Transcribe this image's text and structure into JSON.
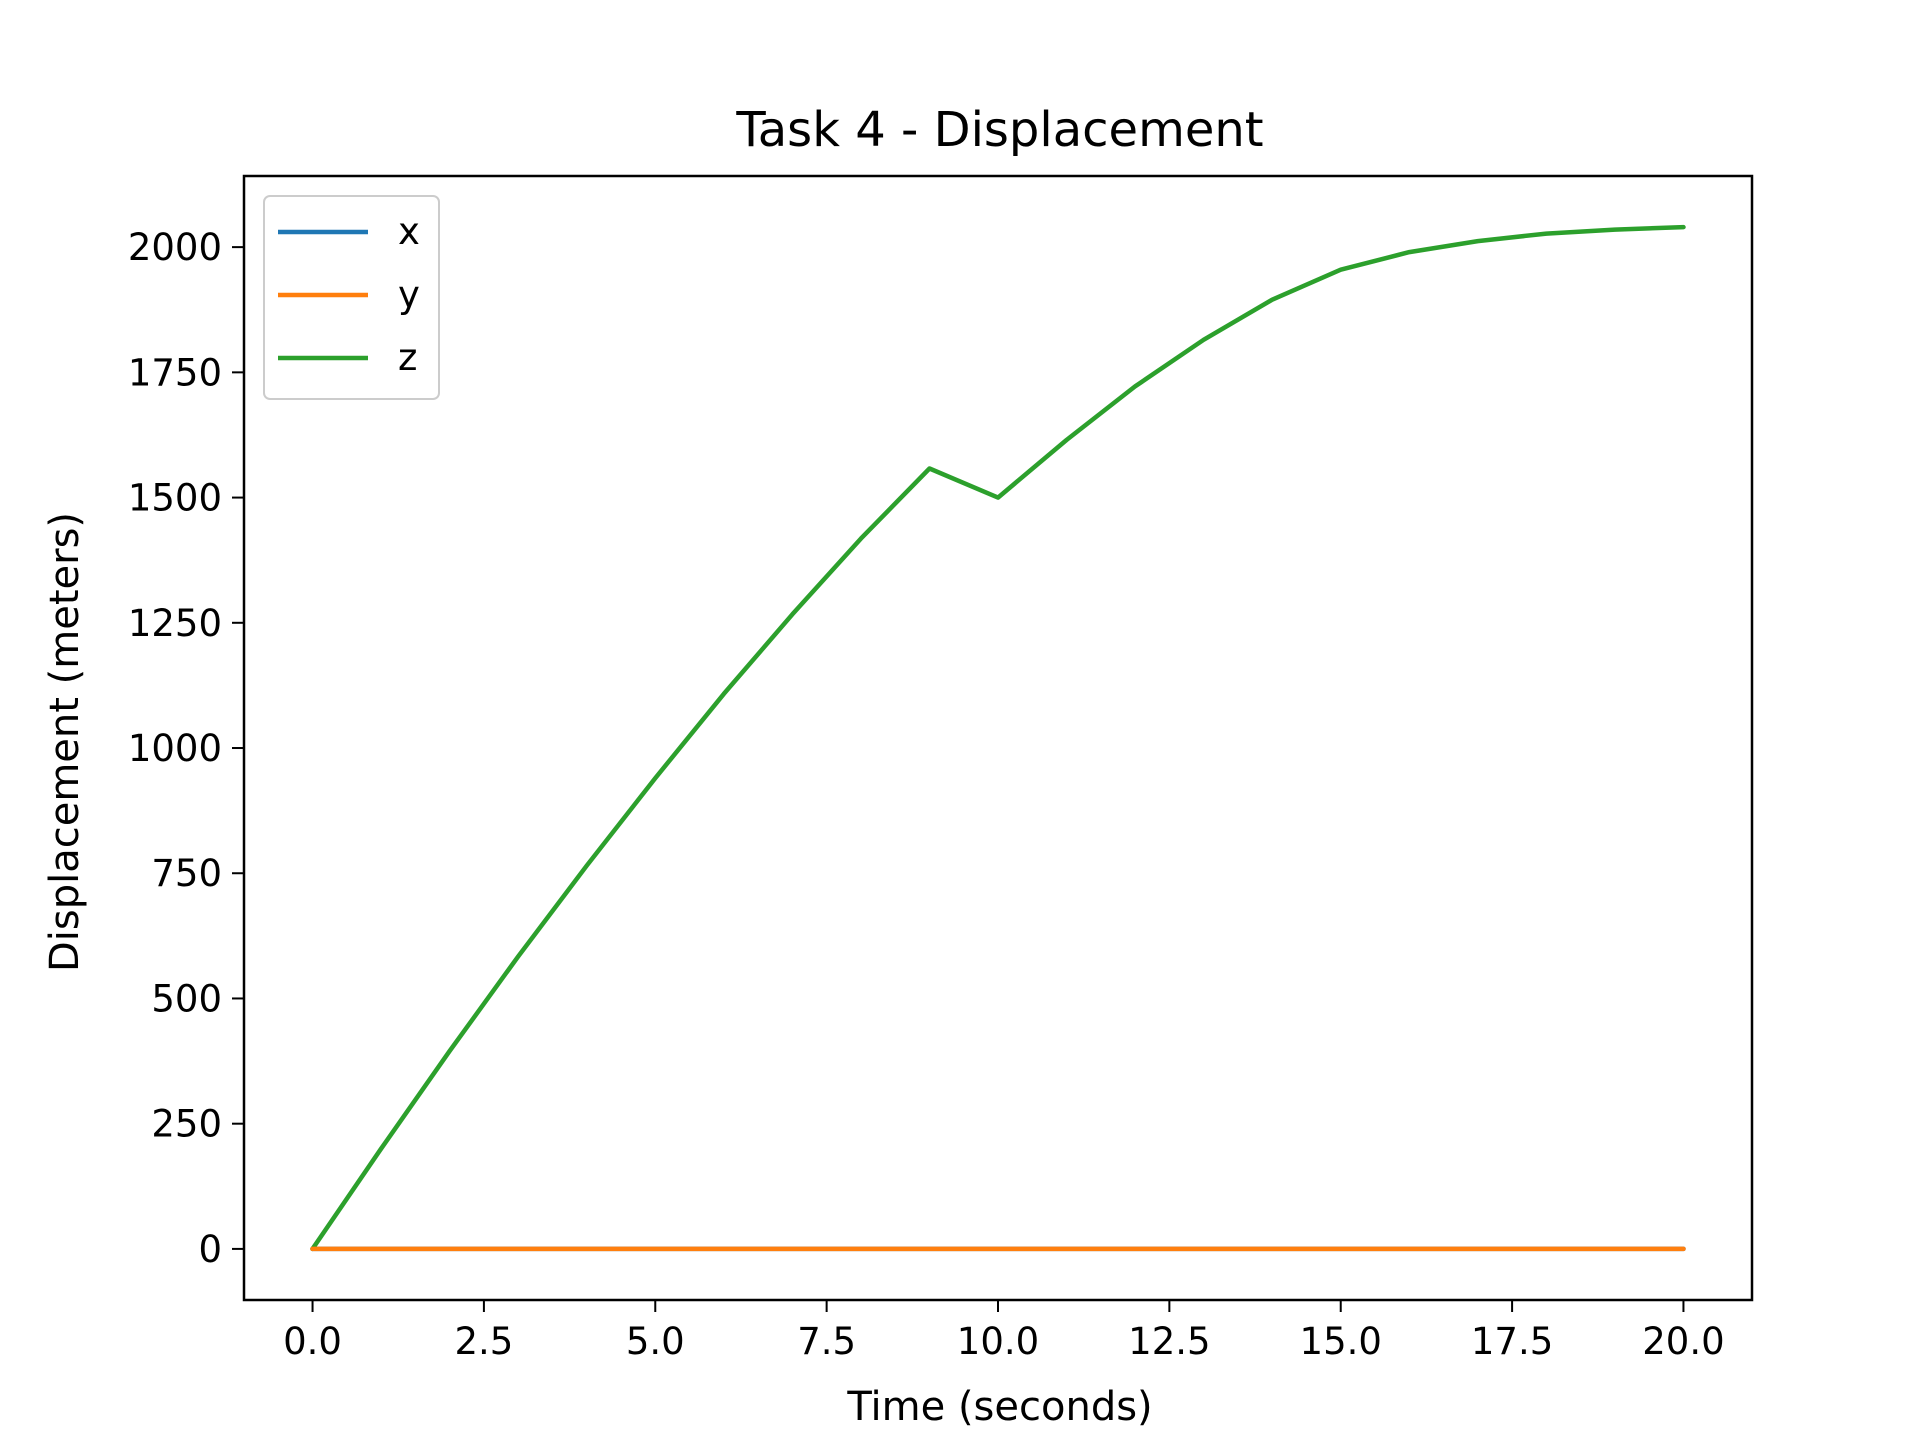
{
  "chart_data": {
    "type": "line",
    "title": "Task 4 - Displacement",
    "xlabel": "Time (seconds)",
    "ylabel": "Displacement (meters)",
    "xlim": [
      -1.0,
      21.0
    ],
    "ylim": [
      -102,
      2142
    ],
    "xticks": [
      0.0,
      2.5,
      5.0,
      7.5,
      10.0,
      12.5,
      15.0,
      17.5,
      20.0
    ],
    "xtick_labels": [
      "0.0",
      "2.5",
      "5.0",
      "7.5",
      "10.0",
      "12.5",
      "15.0",
      "17.5",
      "20.0"
    ],
    "yticks": [
      0,
      250,
      500,
      750,
      1000,
      1250,
      1500,
      1750,
      2000
    ],
    "ytick_labels": [
      "0",
      "250",
      "500",
      "750",
      "1000",
      "1250",
      "1500",
      "1750",
      "2000"
    ],
    "grid": false,
    "legend_position": "upper-left",
    "x": [
      0,
      1,
      2,
      3,
      4,
      5,
      6,
      7,
      8,
      9,
      10,
      11,
      12,
      13,
      14,
      15,
      16,
      17,
      18,
      19,
      20
    ],
    "series": [
      {
        "name": "x",
        "color": "#1f77b4",
        "values": [
          0,
          0,
          0,
          0,
          0,
          0,
          0,
          0,
          0,
          0,
          0,
          0,
          0,
          0,
          0,
          0,
          0,
          0,
          0,
          0,
          0
        ]
      },
      {
        "name": "z",
        "color": "#2ca02c",
        "values": [
          0,
          200,
          395,
          584,
          765,
          940,
          1108,
          1267,
          1418,
          1558,
          1500,
          1615,
          1722,
          1815,
          1895,
          1955,
          1990,
          2012,
          2027,
          2035,
          2040
        ]
      },
      {
        "name": "y",
        "color": "#ff7f0e",
        "values": [
          0,
          0,
          0,
          0,
          0,
          0,
          0,
          0,
          0,
          0,
          0,
          0,
          0,
          0,
          0,
          0,
          0,
          0,
          0,
          0,
          0
        ]
      }
    ],
    "legend_order": [
      "x",
      "y",
      "z"
    ]
  }
}
